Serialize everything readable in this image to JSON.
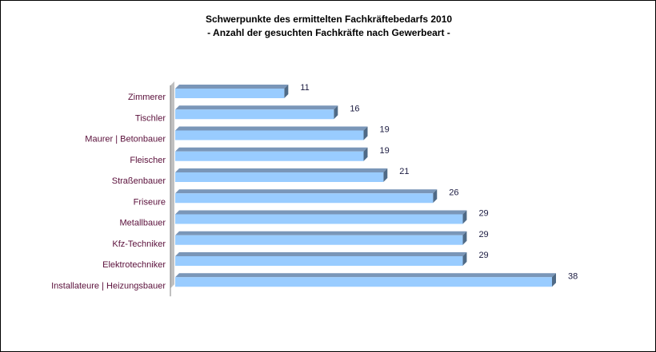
{
  "chart_data": {
    "type": "bar",
    "orientation": "horizontal",
    "title": "Schwerpunkte des ermittelten Fachkräftebedarfs 2010",
    "subtitle": "- Anzahl der gesuchten Fachkräfte nach Gewerbeart -",
    "categories": [
      "Zimmerer",
      "Tischler",
      "Maurer | Betonbauer",
      "Fleischer",
      "Straßenbauer",
      "Friseure",
      "Metallbauer",
      "Kfz-Techniker",
      "Elektrotechniker",
      "Installateure | Heizungsbauer"
    ],
    "values": [
      11,
      16,
      19,
      19,
      21,
      26,
      29,
      29,
      29,
      38
    ],
    "xlim": [
      0,
      38
    ],
    "grid": false,
    "legend": "none",
    "colors": {
      "bar_front": "#99ccff",
      "bar_top": "#7a96b8",
      "bar_side": "#4f6a86",
      "axis_wall": "#c0c0c0",
      "category_text": "#5a0f3a",
      "value_text": "#1a1a40"
    }
  }
}
